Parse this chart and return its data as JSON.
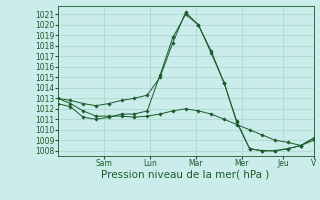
{
  "xlabel": "Pression niveau de la mer( hPa )",
  "ylim": [
    1007.5,
    1021.8
  ],
  "yticks": [
    1008,
    1009,
    1010,
    1011,
    1012,
    1013,
    1014,
    1015,
    1016,
    1017,
    1018,
    1019,
    1020,
    1021
  ],
  "background_color": "#caecea",
  "grid_color": "#aad4cc",
  "line_color": "#1a5c2a",
  "days": [
    "Sam",
    "Lun",
    "Mar",
    "Mer",
    "Jeu",
    "V"
  ],
  "day_x": [
    0.18,
    0.36,
    0.54,
    0.72,
    0.88,
    1.0
  ],
  "series1_x": [
    0.0,
    0.05,
    0.1,
    0.15,
    0.2,
    0.25,
    0.3,
    0.35,
    0.4,
    0.45,
    0.5,
    0.55,
    0.6,
    0.65,
    0.7,
    0.75,
    0.8,
    0.85,
    0.9,
    0.95,
    1.0
  ],
  "series1_y": [
    1013.0,
    1012.8,
    1012.5,
    1012.3,
    1012.5,
    1012.8,
    1013.0,
    1013.3,
    1015.0,
    1018.3,
    1021.2,
    1020.0,
    1017.5,
    1014.5,
    1010.8,
    1008.2,
    1008.0,
    1008.0,
    1008.2,
    1008.5,
    1009.2
  ],
  "series2_x": [
    0.0,
    0.05,
    0.1,
    0.15,
    0.2,
    0.25,
    0.3,
    0.35,
    0.4,
    0.45,
    0.5,
    0.55,
    0.6,
    0.65,
    0.7,
    0.75,
    0.8,
    0.85,
    0.9,
    0.95,
    1.0
  ],
  "series2_y": [
    1012.5,
    1012.2,
    1011.2,
    1011.0,
    1011.2,
    1011.5,
    1011.5,
    1011.8,
    1015.2,
    1018.8,
    1021.0,
    1020.0,
    1017.3,
    1014.5,
    1010.7,
    1008.2,
    1008.0,
    1008.0,
    1008.2,
    1008.5,
    1009.2
  ],
  "series3_x": [
    0.0,
    0.05,
    0.1,
    0.15,
    0.2,
    0.25,
    0.3,
    0.35,
    0.4,
    0.45,
    0.5,
    0.55,
    0.6,
    0.65,
    0.7,
    0.75,
    0.8,
    0.85,
    0.9,
    0.95,
    1.0
  ],
  "series3_y": [
    1013.0,
    1012.5,
    1011.8,
    1011.3,
    1011.3,
    1011.3,
    1011.2,
    1011.3,
    1011.5,
    1011.8,
    1012.0,
    1011.8,
    1011.5,
    1011.0,
    1010.5,
    1010.0,
    1009.5,
    1009.0,
    1008.8,
    1008.5,
    1009.0
  ],
  "xlabel_fontsize": 7.5,
  "tick_fontsize": 5.5
}
